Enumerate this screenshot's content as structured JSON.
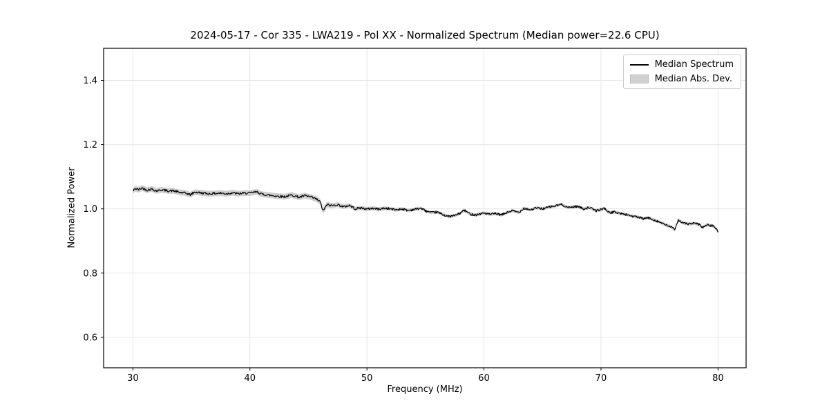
{
  "chart_data": {
    "type": "line",
    "title": "2024-05-17 - Cor 335 - LWA219 - Pol XX - Normalized Spectrum (Median power=22.6 CPU)",
    "xlabel": "Frequency (MHz)",
    "ylabel": "Normalized Power",
    "xlim": [
      27.5,
      82.4
    ],
    "ylim": [
      0.505,
      1.5
    ],
    "xticks": [
      30,
      40,
      50,
      60,
      70,
      80
    ],
    "yticks": [
      0.6,
      0.8,
      1.0,
      1.2,
      1.4
    ],
    "grid": true,
    "grid_color": "#e6e6e6",
    "axis_color": "#000000",
    "line_color": "#000000",
    "band_color": "#c6c6c6",
    "legend": {
      "position": "upper right",
      "entries": [
        "Median Spectrum",
        "Median Abs. Dev."
      ]
    },
    "series": [
      {
        "name": "Median Spectrum",
        "type": "line",
        "x": [
          30.0,
          30.2,
          30.5,
          30.8,
          31.2,
          31.6,
          32.0,
          32.5,
          33.0,
          33.5,
          34.0,
          34.5,
          34.9,
          35.3,
          36.0,
          36.5,
          37.0,
          37.5,
          38.0,
          38.5,
          39.0,
          39.5,
          40.0,
          40.6,
          41.0,
          41.5,
          42.0,
          42.5,
          43.0,
          43.6,
          44.2,
          44.7,
          45.2,
          45.7,
          46.0,
          46.25,
          46.6,
          47.0,
          47.5,
          48.0,
          48.5,
          49.0,
          49.5,
          50.0,
          50.5,
          51.0,
          51.5,
          52.0,
          52.5,
          53.0,
          53.5,
          54.0,
          54.6,
          55.0,
          55.5,
          56.0,
          56.5,
          57.0,
          57.5,
          58.0,
          58.3,
          58.8,
          59.3,
          60.0,
          60.5,
          61.0,
          61.5,
          62.0,
          62.4,
          63.0,
          63.4,
          64.0,
          64.5,
          65.0,
          65.6,
          66.0,
          66.6,
          67.2,
          68.0,
          68.5,
          69.0,
          69.6,
          70.0,
          70.3,
          70.7,
          71.2,
          71.7,
          72.2,
          72.7,
          73.2,
          73.6,
          74.0,
          74.5,
          75.0,
          75.5,
          76.0,
          76.3,
          76.6,
          77.0,
          77.5,
          78.0,
          78.4,
          78.7,
          79.0,
          79.4,
          79.7,
          80.0
        ],
        "y": [
          1.055,
          1.063,
          1.06,
          1.065,
          1.058,
          1.062,
          1.056,
          1.059,
          1.056,
          1.056,
          1.051,
          1.049,
          1.044,
          1.052,
          1.049,
          1.047,
          1.048,
          1.049,
          1.047,
          1.05,
          1.047,
          1.049,
          1.049,
          1.053,
          1.046,
          1.043,
          1.041,
          1.039,
          1.038,
          1.043,
          1.036,
          1.041,
          1.037,
          1.03,
          1.022,
          0.994,
          1.013,
          1.01,
          1.013,
          1.006,
          1.011,
          1.0,
          1.003,
          0.999,
          1.002,
          0.999,
          1.002,
          1.0,
          0.997,
          1.0,
          0.995,
          0.998,
          1.002,
          0.994,
          0.988,
          0.99,
          0.982,
          0.976,
          0.979,
          0.987,
          0.996,
          0.984,
          0.981,
          0.987,
          0.983,
          0.985,
          0.981,
          0.989,
          0.994,
          0.989,
          1.002,
          0.997,
          1.003,
          1.0,
          1.006,
          1.008,
          1.014,
          1.004,
          1.008,
          1.0,
          1.004,
          0.994,
          0.998,
          1.002,
          0.988,
          0.99,
          0.985,
          0.982,
          0.977,
          0.974,
          0.969,
          0.972,
          0.966,
          0.959,
          0.95,
          0.944,
          0.934,
          0.966,
          0.956,
          0.953,
          0.955,
          0.951,
          0.941,
          0.95,
          0.948,
          0.945,
          0.928
        ]
      },
      {
        "name": "Median Abs. Dev.",
        "type": "band",
        "halfwidth_x": [
          30,
          46,
          48,
          55,
          80
        ],
        "halfwidth": [
          0.009,
          0.009,
          0.007,
          0.005,
          0.005
        ]
      }
    ],
    "noise": {
      "seed": 42,
      "amplitude": 0.0035,
      "step_mhz": 0.05
    }
  }
}
